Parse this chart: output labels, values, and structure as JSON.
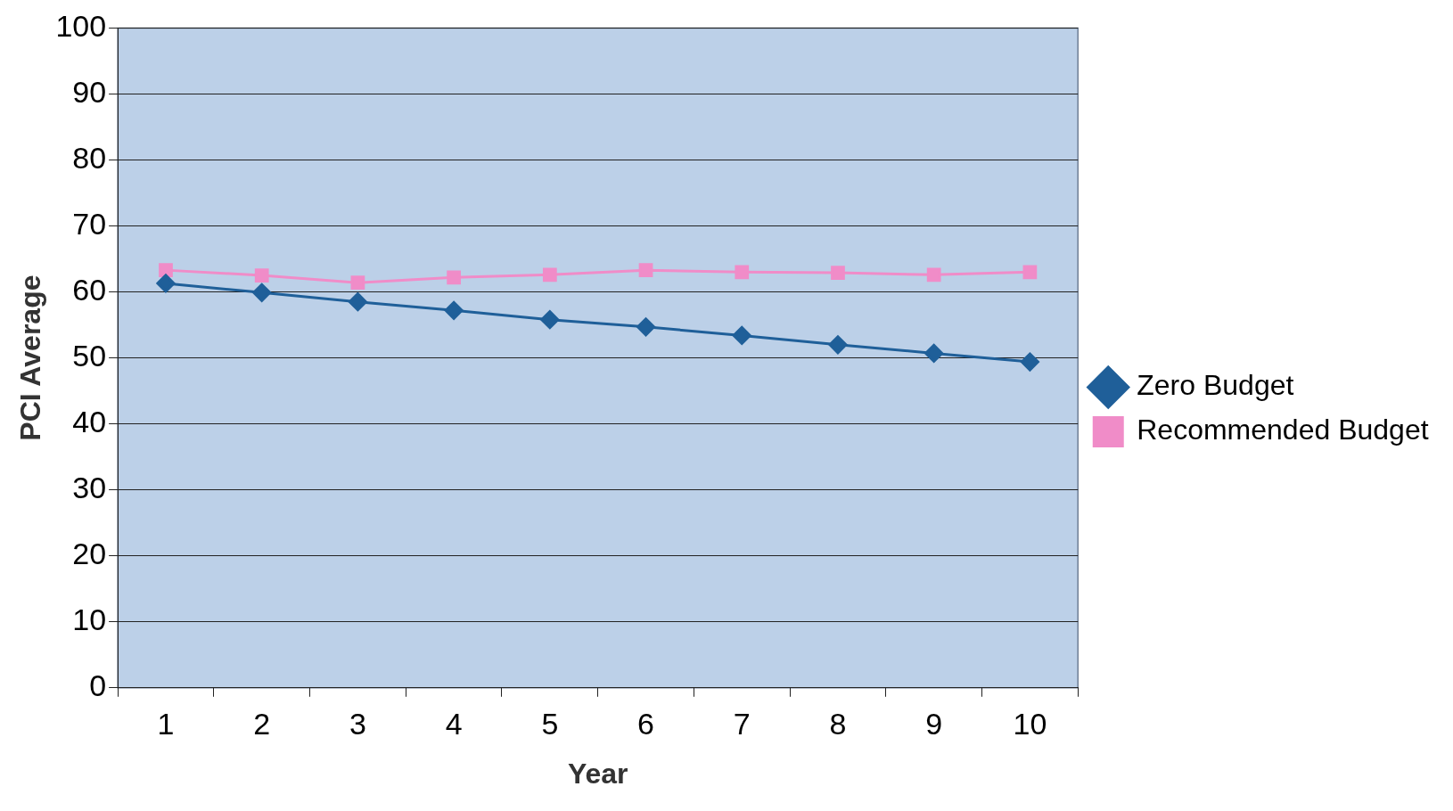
{
  "chart_data": {
    "type": "line",
    "xlabel": "Year",
    "ylabel": "PCI Average",
    "categories": [
      "1",
      "2",
      "3",
      "4",
      "5",
      "6",
      "7",
      "8",
      "9",
      "10"
    ],
    "series": [
      {
        "name": "Zero Budget",
        "color": "#1f5f99",
        "marker": "diamond",
        "values": [
          61.3,
          59.9,
          58.5,
          57.2,
          55.8,
          54.7,
          53.4,
          52.0,
          50.7,
          49.4
        ]
      },
      {
        "name": "Recommended Budget",
        "color": "#f08cc8",
        "marker": "square",
        "values": [
          63.3,
          62.5,
          61.4,
          62.2,
          62.6,
          63.3,
          63.0,
          62.9,
          62.6,
          63.0
        ]
      }
    ],
    "ylim": [
      0,
      100
    ],
    "yticks": [
      0,
      10,
      20,
      30,
      40,
      50,
      60,
      70,
      80,
      90,
      100
    ],
    "grid": "y",
    "legend": "right",
    "line_style": "solid"
  }
}
